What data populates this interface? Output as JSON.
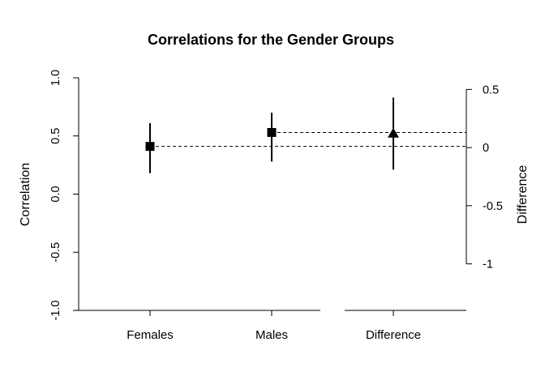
{
  "chart_data": {
    "type": "scatter",
    "title": "Correlations for the Gender Groups",
    "ylabel": "Correlation",
    "ylabel_right": "Difference",
    "ylim": [
      -1.0,
      1.0
    ],
    "ylim_right": [
      -1.4,
      0.6
    ],
    "left_ticks": [
      "-1.0",
      "-0.5",
      "0.0",
      "0.5",
      "1.0"
    ],
    "left_tick_values": [
      -1.0,
      -0.5,
      0.0,
      0.5,
      1.0
    ],
    "right_ticks": [
      "-1",
      "-0.5",
      "0",
      "0.5"
    ],
    "right_tick_values": [
      -1.0,
      -0.5,
      0.0,
      0.5
    ],
    "categories": [
      "Females",
      "Males",
      "Difference"
    ],
    "groups": [
      {
        "label": "Females",
        "estimate": 0.41,
        "lower": 0.18,
        "upper": 0.61,
        "axis": "left",
        "marker": "square"
      },
      {
        "label": "Males",
        "estimate": 0.53,
        "lower": 0.28,
        "upper": 0.7,
        "axis": "left",
        "marker": "square"
      },
      {
        "label": "Difference",
        "estimate": 0.12,
        "lower": -0.19,
        "upper": 0.43,
        "axis": "right",
        "marker": "triangle"
      }
    ],
    "reference_lines": [
      {
        "from": "Females",
        "to": "Difference",
        "value": 0.41,
        "axis": "left",
        "style": "dashed"
      },
      {
        "from": "Males",
        "to": "Difference",
        "value": 0.53,
        "axis": "left",
        "style": "dashed"
      }
    ],
    "grid": false
  }
}
